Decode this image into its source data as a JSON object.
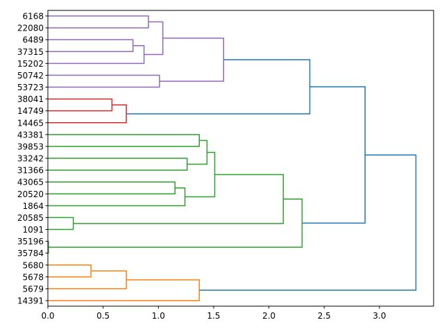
{
  "chart_data": {
    "type": "dendrogram",
    "orientation": "horizontal",
    "title": "",
    "xlabel": "",
    "ylabel": "",
    "xlim": [
      0,
      3.49
    ],
    "xticks": [
      0.0,
      0.5,
      1.0,
      1.5,
      2.0,
      2.5,
      3.0
    ],
    "xtick_labels": [
      "0.0",
      "0.5",
      "1.0",
      "1.5",
      "2.0",
      "2.5",
      "3.0"
    ],
    "grid": false,
    "leaves": [
      "6168",
      "22080",
      "6489",
      "37315",
      "15202",
      "50742",
      "53723",
      "38041",
      "14749",
      "14465",
      "43381",
      "39853",
      "33242",
      "31366",
      "43065",
      "20520",
      "1864",
      "20585",
      "1091",
      "35196",
      "35784",
      "5680",
      "5678",
      "5679",
      "14391"
    ],
    "colors": {
      "purple": "#9467bd",
      "red": "#d62728",
      "green": "#2ca02c",
      "orange": "#ff7f0e",
      "blue": "#1f77b4"
    },
    "merges": [
      {
        "a": "6168",
        "b": "22080",
        "height": 0.91,
        "color": "purple"
      },
      {
        "a": "6489",
        "b": "37315",
        "height": 0.77,
        "color": "purple"
      },
      {
        "a": "#1",
        "b": "15202",
        "height": 0.87,
        "color": "purple"
      },
      {
        "a": "#0",
        "b": "#2",
        "height": 1.04,
        "color": "purple"
      },
      {
        "a": "50742",
        "b": "53723",
        "height": 1.01,
        "color": "purple"
      },
      {
        "a": "#3",
        "b": "#4",
        "height": 1.59,
        "color": "purple"
      },
      {
        "a": "38041",
        "b": "14749",
        "height": 0.58,
        "color": "red"
      },
      {
        "a": "#6",
        "b": "14465",
        "height": 0.71,
        "color": "red"
      },
      {
        "a": "#5",
        "b": "#7",
        "height": 2.37,
        "color": "blue"
      },
      {
        "a": "43381",
        "b": "39853",
        "height": 1.37,
        "color": "green"
      },
      {
        "a": "33242",
        "b": "31366",
        "height": 1.26,
        "color": "green"
      },
      {
        "a": "#9",
        "b": "#10",
        "height": 1.44,
        "color": "green"
      },
      {
        "a": "43065",
        "b": "20520",
        "height": 1.15,
        "color": "green"
      },
      {
        "a": "#12",
        "b": "1864",
        "height": 1.24,
        "color": "green"
      },
      {
        "a": "#11",
        "b": "#13",
        "height": 1.51,
        "color": "green"
      },
      {
        "a": "20585",
        "b": "1091",
        "height": 0.23,
        "color": "green"
      },
      {
        "a": "#14",
        "b": "#15",
        "height": 2.13,
        "color": "green"
      },
      {
        "a": "35196",
        "b": "35784",
        "height": 0.005,
        "color": "green"
      },
      {
        "a": "#16",
        "b": "#17",
        "height": 2.3,
        "color": "green"
      },
      {
        "a": "#8",
        "b": "#18",
        "height": 2.87,
        "color": "blue"
      },
      {
        "a": "5680",
        "b": "5678",
        "height": 0.39,
        "color": "orange"
      },
      {
        "a": "#20",
        "b": "5679",
        "height": 0.71,
        "color": "orange"
      },
      {
        "a": "#21",
        "b": "14391",
        "height": 1.37,
        "color": "orange"
      },
      {
        "a": "#19",
        "b": "#22",
        "height": 3.33,
        "color": "blue"
      }
    ]
  }
}
